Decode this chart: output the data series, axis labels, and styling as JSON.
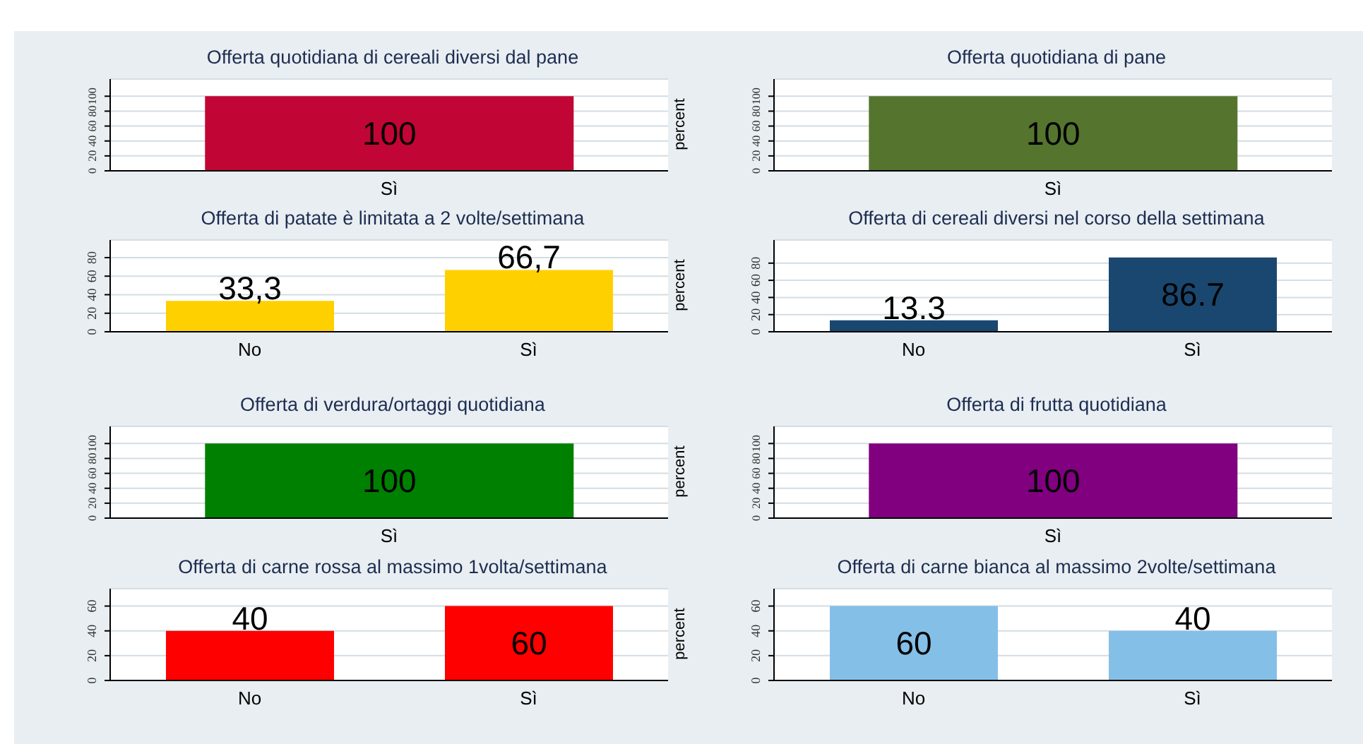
{
  "chart_data": [
    {
      "type": "bar",
      "title": "Offerta quotidiana di cereali diversi dal pane",
      "ylabel": "percent",
      "categories": [
        "Sì"
      ],
      "values": [
        100
      ],
      "color": "#c10534",
      "value_labels": [
        "100"
      ],
      "ylim": [
        0,
        123
      ],
      "yticks": [
        0,
        20,
        40,
        60,
        80,
        100
      ],
      "grid": "y"
    },
    {
      "type": "bar",
      "title": "Offerta quotidiana di pane",
      "categories": [
        "Sì"
      ],
      "values": [
        100
      ],
      "color": "#55752f",
      "value_labels": [
        "100"
      ],
      "ylim": [
        0,
        123
      ],
      "yticks": [
        0,
        20,
        40,
        60,
        80,
        100
      ],
      "grid": "y"
    },
    {
      "type": "bar",
      "title": "Offerta di patate è limitata a 2 volte/settimana",
      "ylabel": "percent",
      "categories": [
        "No",
        "Sì"
      ],
      "values": [
        33.3,
        66.7
      ],
      "color": "#ffd000",
      "value_labels": [
        "33,3",
        "66,7"
      ],
      "ylim": [
        0,
        99
      ],
      "yticks": [
        0,
        20,
        40,
        60,
        80
      ],
      "grid": "y"
    },
    {
      "type": "bar",
      "title": "Offerta di cereali diversi nel corso della settimana",
      "categories": [
        "No",
        "Sì"
      ],
      "values": [
        13.3,
        86.7
      ],
      "color": "#1a476f",
      "value_labels": [
        "13.3",
        "86.7"
      ],
      "ylim": [
        0,
        107
      ],
      "yticks": [
        0,
        20,
        40,
        60,
        80
      ],
      "grid": "y"
    },
    {
      "type": "bar",
      "title": "Offerta di verdura/ortaggi quotidiana",
      "ylabel": "percent",
      "categories": [
        "Sì"
      ],
      "values": [
        100
      ],
      "color": "#008000",
      "value_labels": [
        "100"
      ],
      "ylim": [
        0,
        123
      ],
      "yticks": [
        0,
        20,
        40,
        60,
        80,
        100
      ],
      "grid": "y"
    },
    {
      "type": "bar",
      "title": "Offerta di frutta quotidiana",
      "categories": [
        "Sì"
      ],
      "values": [
        100
      ],
      "color": "#800080",
      "value_labels": [
        "100"
      ],
      "ylim": [
        0,
        123
      ],
      "yticks": [
        0,
        20,
        40,
        60,
        80,
        100
      ],
      "grid": "y"
    },
    {
      "type": "bar",
      "title": "Offerta di carne rossa al massimo 1volta/settimana",
      "ylabel": "percent",
      "categories": [
        "No",
        "Sì"
      ],
      "values": [
        40,
        60
      ],
      "color": "#ff0000",
      "value_labels": [
        "40",
        "60"
      ],
      "ylim": [
        0,
        74
      ],
      "yticks": [
        0,
        20,
        40,
        60
      ],
      "grid": "y"
    },
    {
      "type": "bar",
      "title": "Offerta di carne bianca al massimo 2volte/settimana",
      "categories": [
        "No",
        "Sì"
      ],
      "values": [
        60,
        40
      ],
      "color": "#84bfe8",
      "value_labels": [
        "60",
        "40"
      ],
      "ylim": [
        0,
        74
      ],
      "yticks": [
        0,
        20,
        40,
        60
      ],
      "grid": "y"
    }
  ]
}
